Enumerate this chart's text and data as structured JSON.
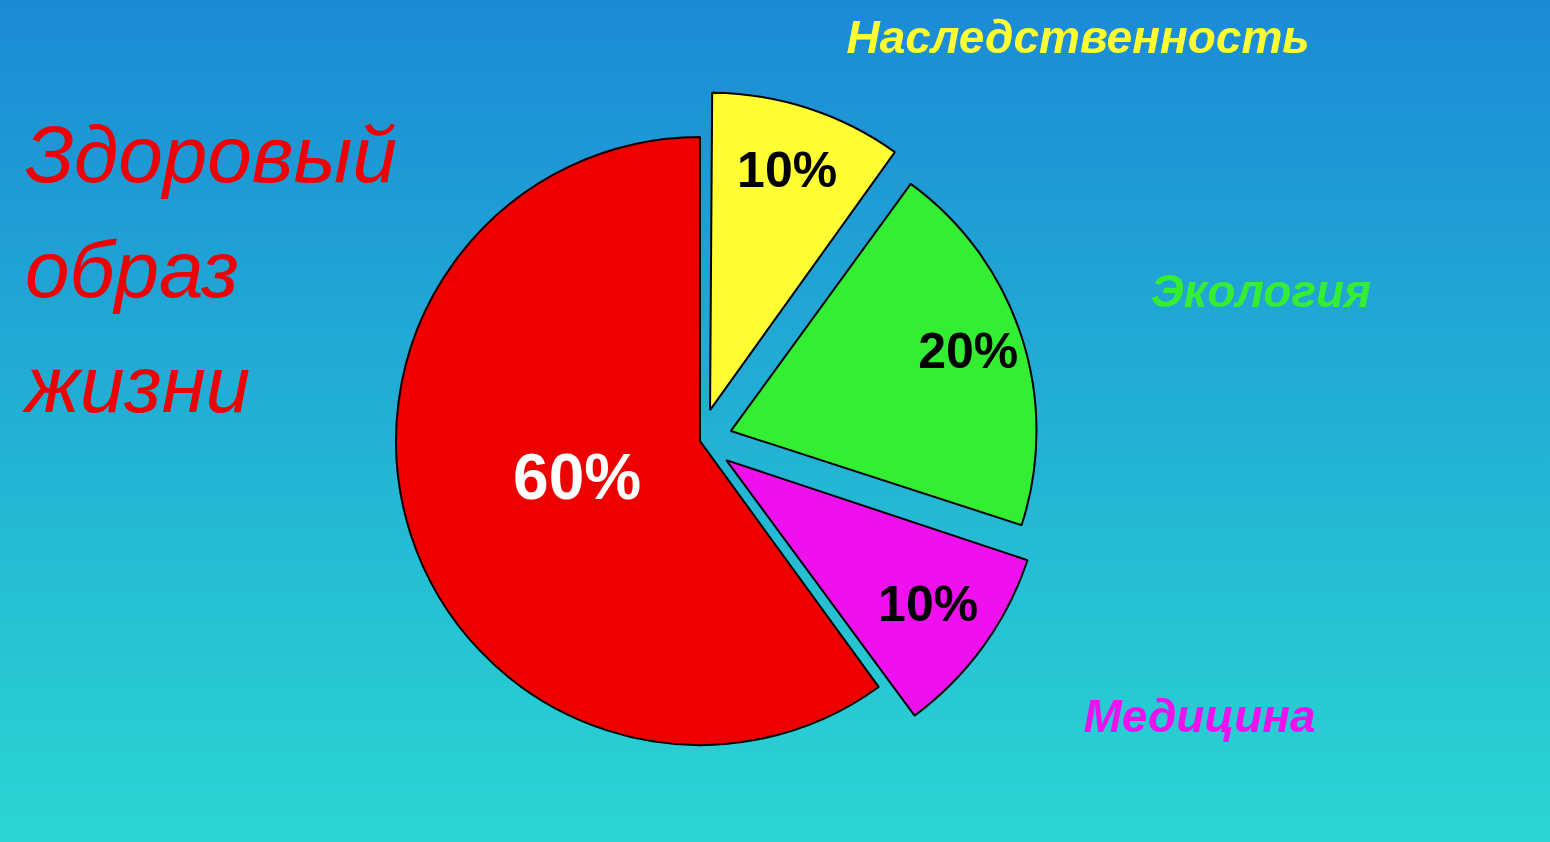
{
  "chart_data": {
    "type": "pie",
    "categories": [
      "Наследственность",
      "Экология",
      "Медицина",
      "Здоровый образ жизни"
    ],
    "values": [
      10,
      20,
      10,
      60
    ],
    "colors": [
      "#ffff33",
      "#33ee33",
      "#ee11ee",
      "#ee0000"
    ],
    "value_labels": [
      "10%",
      "20%",
      "10%",
      "60%"
    ],
    "legend": false
  }
}
